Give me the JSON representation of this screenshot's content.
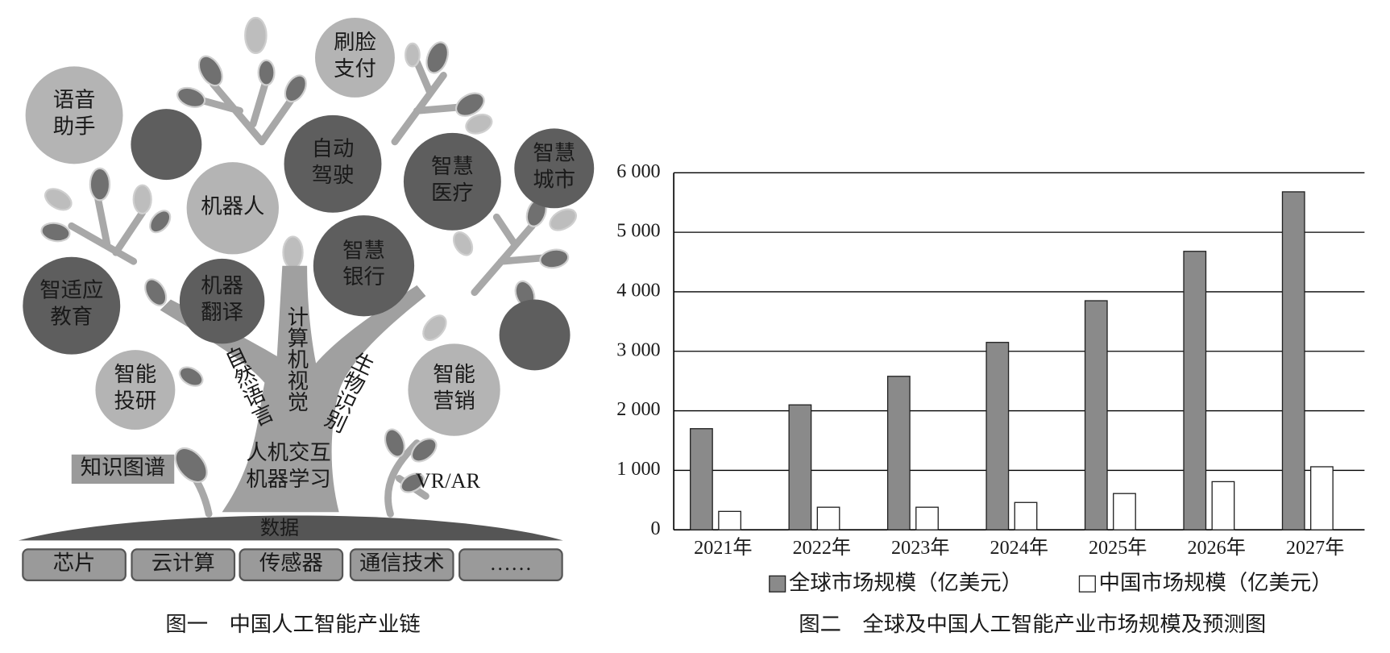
{
  "figure1": {
    "caption": "图一　中国人工智能产业链",
    "bubbles": [
      [
        "语音",
        "助手"
      ],
      [
        "刷脸",
        "支付"
      ],
      [
        "自动",
        "驾驶"
      ],
      [
        "智慧",
        "医疗"
      ],
      [
        "智慧",
        "城市"
      ],
      [
        "机器人"
      ],
      [
        "智慧",
        "银行"
      ],
      [
        "智适应",
        "教育"
      ],
      [
        "机器",
        "翻译"
      ],
      [
        "智能",
        "投研"
      ],
      [
        "智能",
        "营销"
      ]
    ],
    "trunk_labels": [
      "自然语言",
      "计算机视觉",
      "生物识别"
    ],
    "core_labels": [
      "人机交互",
      "机器学习"
    ],
    "knowledge_graph": "知识图谱",
    "vr_ar": "VR/AR",
    "ground": "数据",
    "foundations": [
      "芯片",
      "云计算",
      "传感器",
      "通信技术",
      "……"
    ]
  },
  "chart_data": {
    "type": "bar",
    "caption": "图二　全球及中国人工智能产业市场规模及预测图",
    "categories": [
      "2021年",
      "2022年",
      "2023年",
      "2024年",
      "2025年",
      "2026年",
      "2027年"
    ],
    "series": [
      {
        "name": "全球市场规模（亿美元）",
        "color": "#8a8a8a",
        "values": [
          1700,
          2100,
          2580,
          3150,
          3850,
          4680,
          5680
        ]
      },
      {
        "name": "中国市场规模（亿美元）",
        "color": "#ffffff",
        "values": [
          310,
          380,
          380,
          460,
          610,
          810,
          1060
        ]
      }
    ],
    "ylim": [
      0,
      6000
    ],
    "yticks": [
      0,
      {
        "value": 1000,
        "label": "1 000"
      },
      {
        "value": 2000,
        "label": "2 000"
      },
      {
        "value": 3000,
        "label": "3 000"
      },
      {
        "value": 4000,
        "label": "4 000"
      },
      {
        "value": 5000,
        "label": "5 000"
      },
      {
        "value": 6000,
        "label": "6 000"
      }
    ],
    "grid": true
  }
}
